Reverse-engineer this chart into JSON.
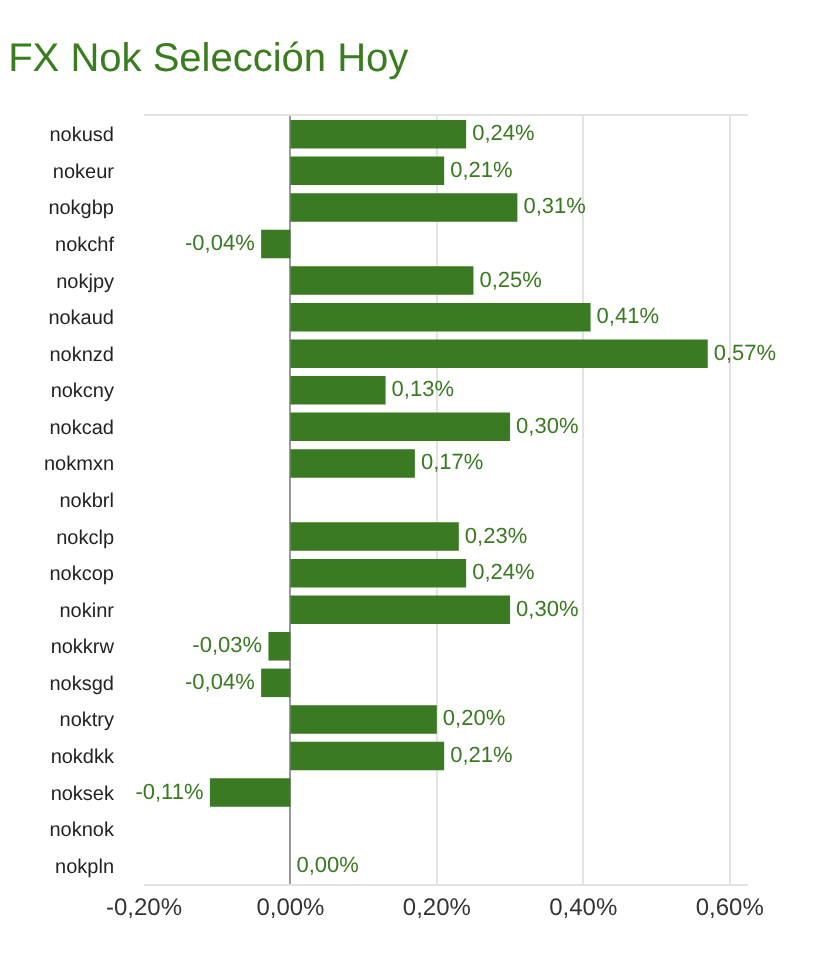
{
  "chart_data": {
    "type": "bar",
    "orientation": "horizontal",
    "title": "FX Nok Selección Hoy",
    "categories": [
      "nokusd",
      "nokeur",
      "nokgbp",
      "nokchf",
      "nokjpy",
      "nokaud",
      "noknzd",
      "nokcny",
      "nokcad",
      "nokmxn",
      "nokbrl",
      "nokclp",
      "nokcop",
      "nokinr",
      "nokkrw",
      "noksgd",
      "noktry",
      "nokdkk",
      "noksek",
      "noknok",
      "nokpln"
    ],
    "values": [
      0.24,
      0.21,
      0.31,
      -0.04,
      0.25,
      0.41,
      0.57,
      0.13,
      0.3,
      0.17,
      null,
      0.23,
      0.24,
      0.3,
      -0.03,
      -0.04,
      0.2,
      0.21,
      -0.11,
      null,
      0.0
    ],
    "value_labels": [
      "0,24%",
      "0,21%",
      "0,31%",
      "-0,04%",
      "0,25%",
      "0,41%",
      "0,57%",
      "0,13%",
      "0,30%",
      "0,17%",
      null,
      "0,23%",
      "0,24%",
      "0,30%",
      "-0,03%",
      "-0,04%",
      "0,20%",
      "0,21%",
      "-0,11%",
      null,
      "0,00%"
    ],
    "color": "#3a7a22",
    "xlim": [
      -0.2,
      0.625
    ],
    "xticks": [
      {
        "value": -0.2,
        "label": "-0,20%"
      },
      {
        "value": 0,
        "label": "0,00%"
      },
      {
        "value": 0.2,
        "label": "0,20%"
      },
      {
        "value": 0.4,
        "label": "0,40%"
      },
      {
        "value": 0.6,
        "label": "0,60%"
      }
    ],
    "grid": "x"
  }
}
